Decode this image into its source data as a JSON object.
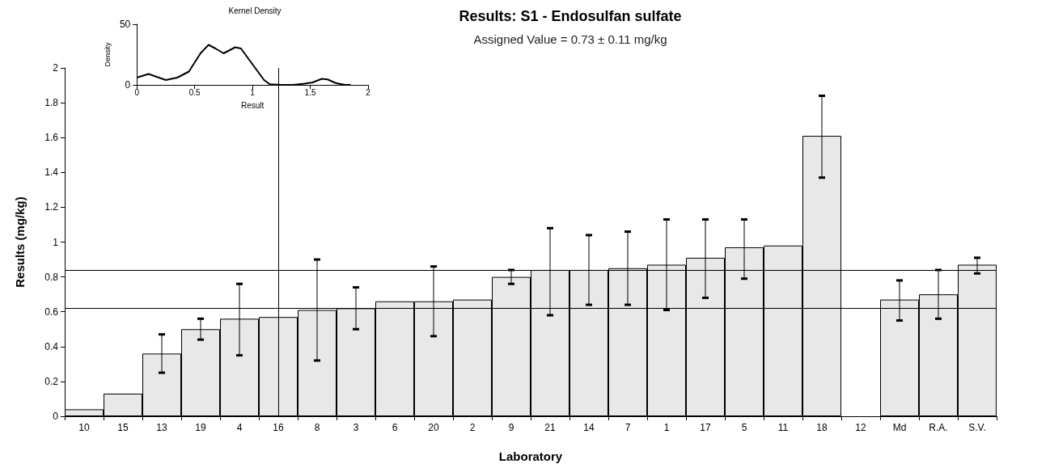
{
  "chart_data": [
    {
      "type": "bar",
      "title": "Results: S1 - Endosulfan sulfate",
      "subtitle": "Assigned Value = 0.73 ± 0.11 mg/kg",
      "xlabel": "Laboratory",
      "ylabel": "Results (mg/kg)",
      "categories": [
        "10",
        "15",
        "13",
        "19",
        "4",
        "16",
        "8",
        "3",
        "6",
        "20",
        "2",
        "9",
        "21",
        "14",
        "7",
        "1",
        "17",
        "5",
        "11",
        "18",
        "12",
        "Md",
        "R.A.",
        "S.V."
      ],
      "values": [
        0.04,
        0.13,
        0.36,
        0.5,
        0.56,
        0.57,
        0.61,
        0.62,
        0.66,
        0.66,
        0.67,
        0.8,
        0.84,
        0.84,
        0.85,
        0.87,
        0.91,
        0.97,
        0.98,
        1.61,
        null,
        0.67,
        0.7,
        0.87
      ],
      "errors": [
        null,
        null,
        [
          0.25,
          0.47
        ],
        [
          0.44,
          0.56
        ],
        [
          0.35,
          0.76
        ],
        null,
        [
          0.32,
          0.9
        ],
        [
          0.5,
          0.74
        ],
        null,
        [
          0.46,
          0.86
        ],
        null,
        [
          0.76,
          0.84
        ],
        [
          0.58,
          1.08
        ],
        [
          0.64,
          1.04
        ],
        [
          0.64,
          1.06
        ],
        [
          0.61,
          1.13
        ],
        [
          0.68,
          1.13
        ],
        [
          0.79,
          1.13
        ],
        null,
        [
          1.37,
          1.84
        ],
        null,
        [
          0.55,
          0.78
        ],
        [
          0.56,
          0.84
        ],
        [
          0.82,
          0.91
        ]
      ],
      "color": "#e8e8e8",
      "ylim": [
        0,
        2
      ],
      "yticks": [
        0,
        0.2,
        0.4,
        0.6,
        0.8,
        1,
        1.2,
        1.4,
        1.6,
        1.8,
        2
      ],
      "ref_lines": [
        {
          "axis": "y",
          "value": 0.84,
          "color": "#000000"
        },
        {
          "axis": "y",
          "value": 0.62,
          "color": "#000000"
        },
        {
          "axis": "x",
          "value": "16",
          "color": "#000000"
        }
      ]
    },
    {
      "type": "line",
      "title": "Kernel Density",
      "xlabel": "Result",
      "ylabel": "Density",
      "series": [
        {
          "color": "#000000",
          "x": [
            0,
            0.1,
            0.25,
            0.35,
            0.45,
            0.55,
            0.62,
            0.68,
            0.75,
            0.85,
            0.9,
            1.0,
            1.1,
            1.15,
            1.25,
            1.35,
            1.45,
            1.52,
            1.6,
            1.65,
            1.72,
            1.8,
            1.85
          ],
          "values": [
            6,
            9,
            4,
            6,
            11,
            26,
            33,
            30,
            26,
            31,
            30,
            17,
            4,
            0.5,
            0,
            0,
            1,
            2,
            5,
            4.5,
            1.5,
            0,
            0
          ]
        }
      ],
      "xlim": [
        0,
        2
      ],
      "xticks": [
        0,
        0.5,
        1,
        1.5,
        2
      ],
      "ylim": [
        0,
        50
      ],
      "yticks": [
        0,
        50
      ],
      "marker": "none",
      "line_style": "solid"
    }
  ]
}
